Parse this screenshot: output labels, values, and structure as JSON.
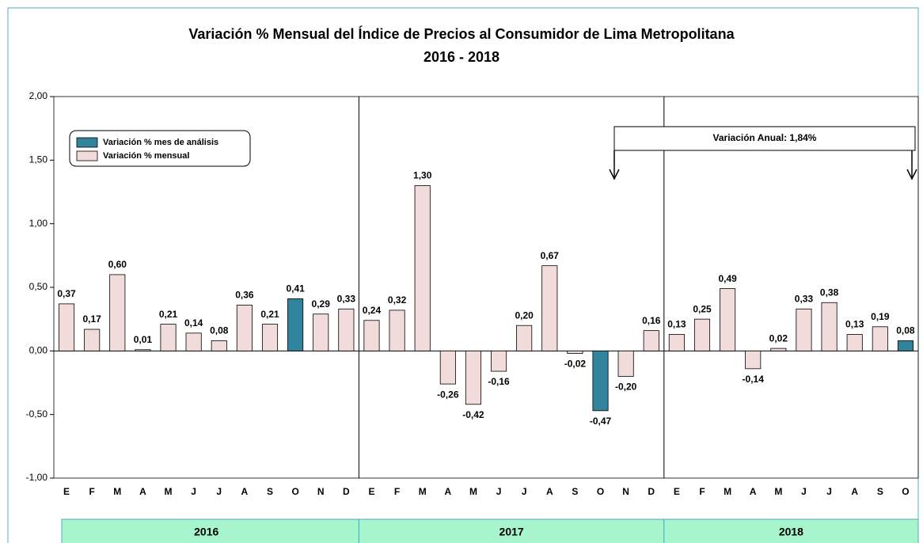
{
  "chart_data": {
    "type": "bar",
    "title": "Variación % Mensual del Índice de Precios al Consumidor de Lima Metropolitana",
    "subtitle": "2016 - 2018",
    "groups": [
      {
        "name": "2016",
        "categories": [
          "E",
          "F",
          "M",
          "A",
          "M",
          "J",
          "J",
          "A",
          "S",
          "O",
          "N",
          "D"
        ],
        "values": [
          0.37,
          0.17,
          0.6,
          0.01,
          0.21,
          0.14,
          0.08,
          0.36,
          0.21,
          0.41,
          0.29,
          0.33
        ],
        "value_labels": [
          "0,37",
          "0,17",
          "0,60",
          "0,01",
          "0,21",
          "0,14",
          "0,08",
          "0,36",
          "0,21",
          "0,41",
          "0,29",
          "0,33"
        ],
        "colors": [
          "#f2dcdb",
          "#f2dcdb",
          "#f2dcdb",
          "#f2dcdb",
          "#f2dcdb",
          "#f2dcdb",
          "#f2dcdb",
          "#f2dcdb",
          "#f2dcdb",
          "#31849b",
          "#f2dcdb",
          "#f2dcdb"
        ]
      },
      {
        "name": "2017",
        "categories": [
          "E",
          "F",
          "M",
          "A",
          "M",
          "J",
          "J",
          "A",
          "S",
          "O",
          "N",
          "D"
        ],
        "values": [
          0.24,
          0.32,
          1.3,
          -0.26,
          -0.42,
          -0.16,
          0.2,
          0.67,
          -0.02,
          -0.47,
          -0.2,
          0.16
        ],
        "value_labels": [
          "0,24",
          "0,32",
          "1,30",
          "-0,26",
          "-0,42",
          "-0,16",
          "0,20",
          "0,67",
          "-0,02",
          "-0,47",
          "-0,20",
          "0,16"
        ],
        "colors": [
          "#f2dcdb",
          "#f2dcdb",
          "#f2dcdb",
          "#f2dcdb",
          "#f2dcdb",
          "#f2dcdb",
          "#f2dcdb",
          "#f2dcdb",
          "#f2dcdb",
          "#31849b",
          "#f2dcdb",
          "#f2dcdb"
        ]
      },
      {
        "name": "2018",
        "categories": [
          "E",
          "F",
          "M",
          "A",
          "M",
          "J",
          "J",
          "A",
          "S",
          "O"
        ],
        "values": [
          0.13,
          0.25,
          0.49,
          -0.14,
          0.02,
          0.33,
          0.38,
          0.13,
          0.19,
          0.08
        ],
        "value_labels": [
          "0,13",
          "0,25",
          "0,49",
          "-0,14",
          "0,02",
          "0,33",
          "0,38",
          "0,13",
          "0,19",
          "0,08"
        ],
        "colors": [
          "#f2dcdb",
          "#f2dcdb",
          "#f2dcdb",
          "#f2dcdb",
          "#f2dcdb",
          "#f2dcdb",
          "#f2dcdb",
          "#f2dcdb",
          "#f2dcdb",
          "#31849b"
        ]
      }
    ],
    "legend": [
      {
        "name": "Variación % mes de análisis",
        "color": "#31849b"
      },
      {
        "name": "Variación % mensual",
        "color": "#f2dcdb"
      }
    ],
    "annotation": "Variación Anual: 1,84%",
    "ylim": [
      -1,
      2
    ],
    "yticks": [
      {
        "value": -1,
        "label": "-1,00"
      },
      {
        "value": -0.5,
        "label": "-0,50"
      },
      {
        "value": 0,
        "label": "0,00"
      },
      {
        "value": 0.5,
        "label": "0,50"
      },
      {
        "value": 1,
        "label": "1,00"
      },
      {
        "value": 1.5,
        "label": "1,50"
      },
      {
        "value": 2,
        "label": "2,00"
      }
    ]
  }
}
